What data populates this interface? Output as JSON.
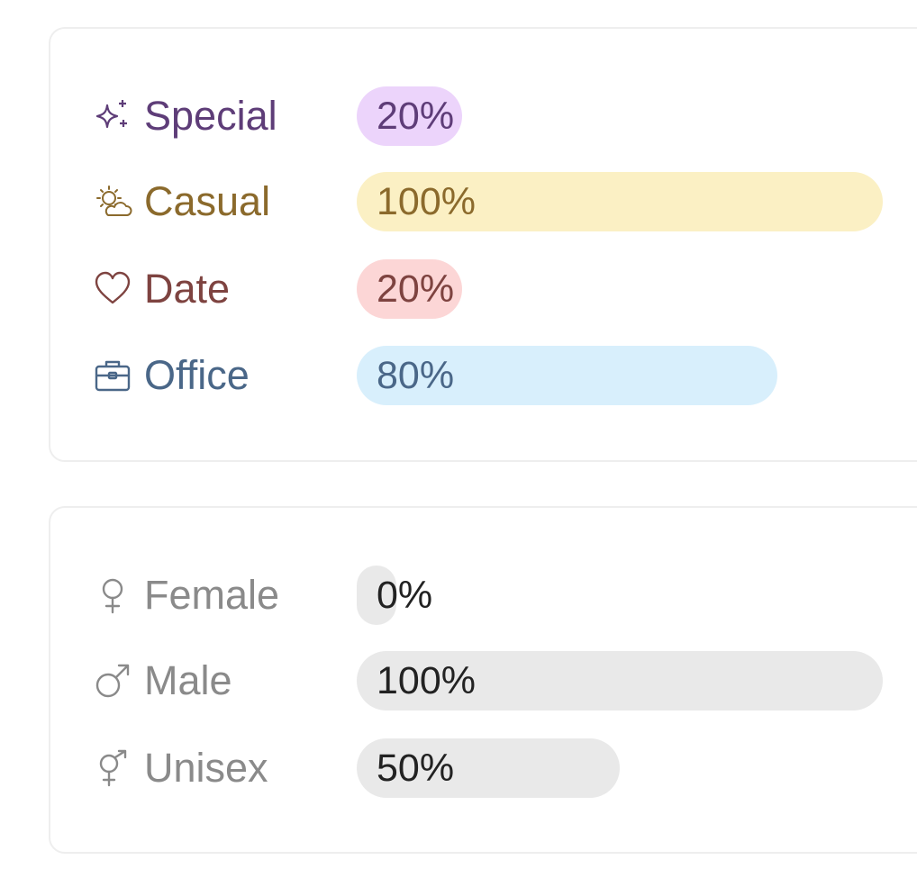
{
  "occasion": {
    "items": [
      {
        "label": "Special",
        "value_text": "20%",
        "value": 20,
        "icon": "sparkles-icon",
        "text_color": "#5e3d78",
        "bar_color": "#ecd4fb"
      },
      {
        "label": "Casual",
        "value_text": "100%",
        "value": 100,
        "icon": "sun-cloud-icon",
        "text_color": "#8b6a2c",
        "bar_color": "#fbf0c4"
      },
      {
        "label": "Date",
        "value_text": "20%",
        "value": 20,
        "icon": "heart-icon",
        "text_color": "#7e4340",
        "bar_color": "#fcd6d6"
      },
      {
        "label": "Office",
        "value_text": "80%",
        "value": 80,
        "icon": "briefcase-icon",
        "text_color": "#4a6788",
        "bar_color": "#d8effc"
      }
    ]
  },
  "gender": {
    "items": [
      {
        "label": "Female",
        "value_text": "0%",
        "value": 0,
        "icon": "female-symbol-icon",
        "text_color": "#8a8a8a",
        "bar_color": "#e9e9e9"
      },
      {
        "label": "Male",
        "value_text": "100%",
        "value": 100,
        "icon": "male-symbol-icon",
        "text_color": "#8a8a8a",
        "bar_color": "#e9e9e9"
      },
      {
        "label": "Unisex",
        "value_text": "50%",
        "value": 50,
        "icon": "unisex-symbol-icon",
        "text_color": "#8a8a8a",
        "bar_color": "#e9e9e9"
      }
    ],
    "value_text_color": "#222222"
  }
}
